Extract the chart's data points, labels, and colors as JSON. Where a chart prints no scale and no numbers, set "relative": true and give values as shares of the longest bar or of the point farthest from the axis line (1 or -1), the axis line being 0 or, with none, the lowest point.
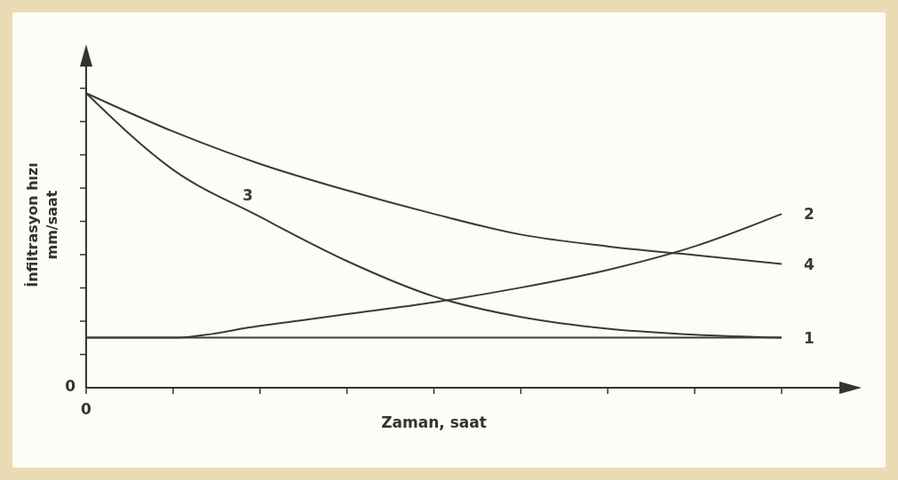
{
  "chart_data": {
    "type": "line",
    "relative": true,
    "xlabel": "Zaman, saat",
    "ylabel": "İnfiltrasyon hızı\nmm/saat",
    "categories": [
      null,
      null,
      null,
      null,
      null,
      null,
      null,
      null,
      null
    ],
    "series": [
      {
        "name": "1",
        "color": "#3a3a3a",
        "values": [
          0.17,
          0.17,
          0.17,
          0.17,
          0.17,
          0.17,
          0.17,
          0.17,
          0.17
        ]
      },
      {
        "name": "2",
        "color": "#3a3a3a",
        "values": [
          0.17,
          0.17,
          0.21,
          0.25,
          0.29,
          0.34,
          0.4,
          0.48,
          0.59
        ]
      },
      {
        "name": "3",
        "color": "#3a3a3a",
        "values": [
          1,
          0.74,
          0.58,
          0.43,
          0.31,
          0.24,
          0.2,
          0.18,
          0.17
        ]
      },
      {
        "name": "4",
        "color": "#3a3a3a",
        "values": [
          1,
          0.87,
          0.76,
          0.67,
          0.59,
          0.52,
          0.48,
          0.45,
          0.42
        ]
      }
    ],
    "annotations": [
      "0",
      "0"
    ],
    "grid": false
  }
}
